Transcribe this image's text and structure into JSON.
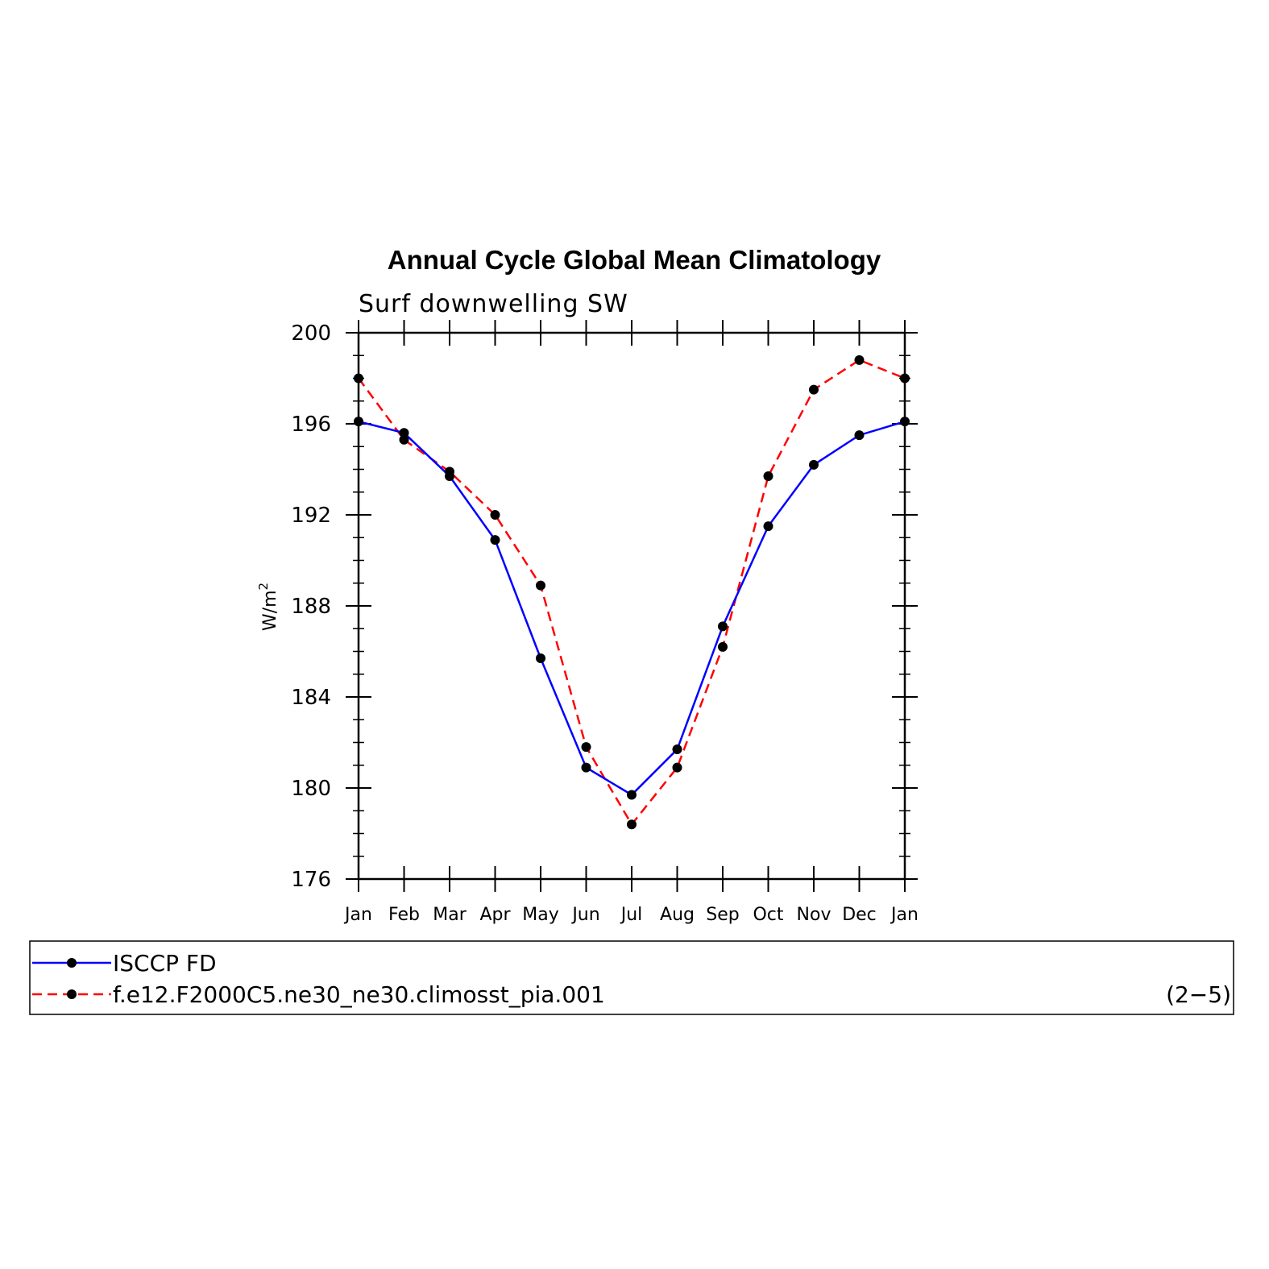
{
  "chart_data": {
    "type": "line",
    "title": "Annual Cycle Global Mean Climatology",
    "subtitle": "Surf downwelling SW",
    "ylabel": "W/m",
    "ylabel_superscript": "2",
    "categories": [
      "Jan",
      "Feb",
      "Mar",
      "Apr",
      "May",
      "Jun",
      "Jul",
      "Aug",
      "Sep",
      "Oct",
      "Nov",
      "Dec",
      "Jan"
    ],
    "ylim": [
      176,
      200
    ],
    "yticks": [
      176,
      180,
      184,
      188,
      192,
      196,
      200
    ],
    "yticks_labels": [
      "176",
      "180",
      "184",
      "188",
      "192",
      "196",
      "200"
    ],
    "series": [
      {
        "name": "ISCCP FD",
        "color": "#0000ff",
        "style": "solid",
        "values": [
          196.1,
          195.6,
          193.7,
          190.9,
          185.7,
          180.9,
          179.7,
          181.7,
          187.1,
          191.5,
          194.2,
          195.5,
          196.1
        ]
      },
      {
        "name": "f.e12.F2000C5.ne30_ne30.climosst_pia.001",
        "color": "#ff0000",
        "style": "dashed",
        "values": [
          198.0,
          195.3,
          193.9,
          192.0,
          188.9,
          181.8,
          178.4,
          180.9,
          186.2,
          193.7,
          197.5,
          198.8,
          198.0
        ]
      }
    ],
    "legend_placement": "bottom",
    "annotation": "(2−5)",
    "grid": false
  }
}
